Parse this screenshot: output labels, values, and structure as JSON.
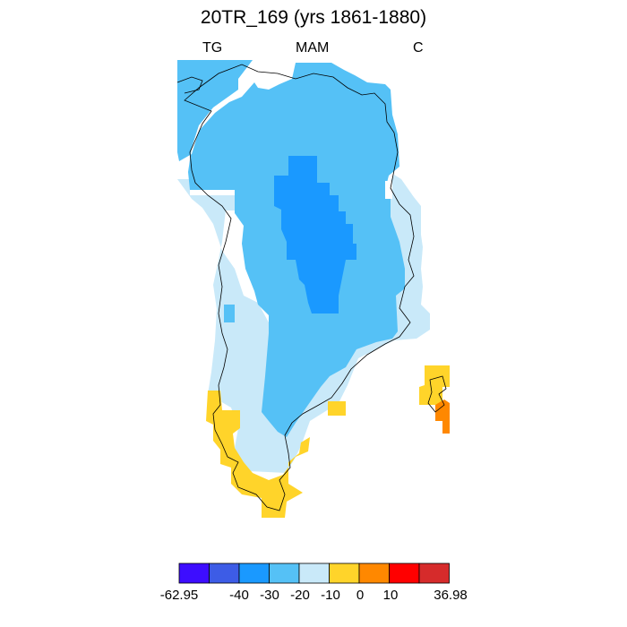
{
  "title": "20TR_169 (yrs 1861-1880)",
  "subtitle_left": "TG",
  "subtitle_center": "MAM",
  "subtitle_right": "C",
  "palette": {
    "lt_-40": "#3d0dff",
    "-40_-30": "#3d5ce6",
    "-30_-20": "#1a99ff",
    "-20_-10": "#55c1f6",
    "-10_0": "#c9e9f9",
    "0_10": "#ffd42a",
    "10_20": "#ff8800",
    "20_30": "#ff0000",
    "gt_30": "#d62b2b"
  },
  "colorbar": {
    "labels": [
      "-62.95",
      "-40",
      "-30",
      "-20",
      "-10",
      "0",
      "10",
      "36.98"
    ],
    "colors": [
      "#3d0dff",
      "#3d5ce6",
      "#1a99ff",
      "#55c1f6",
      "#c9e9f9",
      "#ffd42a",
      "#ff8800",
      "#ff0000",
      "#d62b2b"
    ]
  }
}
